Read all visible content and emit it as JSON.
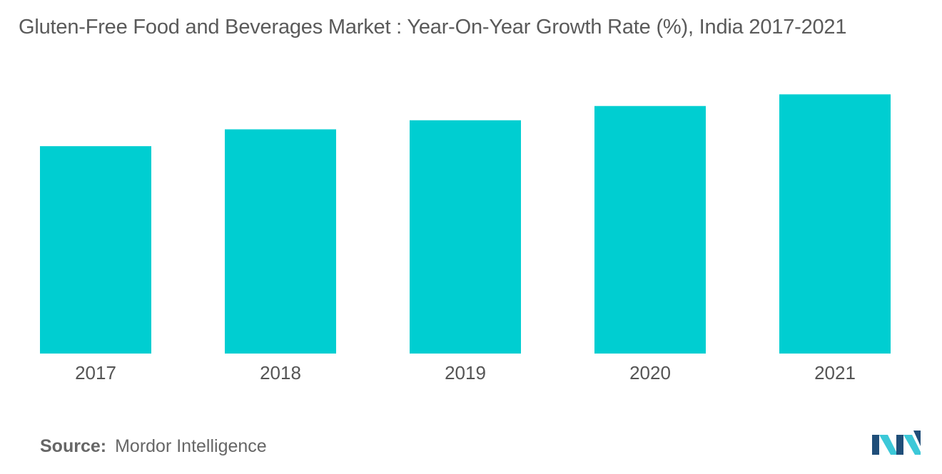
{
  "chart_data": {
    "type": "bar",
    "title": "Gluten-Free Food and Beverages Market : Year-On-Year Growth Rate (%), India  2017-2021",
    "categories": [
      "2017",
      "2018",
      "2019",
      "2020",
      "2021"
    ],
    "values": [
      8.0,
      8.65,
      9.0,
      9.55,
      10.0
    ],
    "xlabel": "",
    "ylabel": "",
    "ylim": [
      0,
      11
    ],
    "bar_color": "#00CED1",
    "grid": false,
    "legend": "none"
  },
  "source": {
    "label": "Source:",
    "text": "Mordor Intelligence"
  },
  "logo": {
    "icon": "mordor-intelligence-logo-icon",
    "colors": [
      "#1F4E79",
      "#3CC8D8"
    ]
  }
}
